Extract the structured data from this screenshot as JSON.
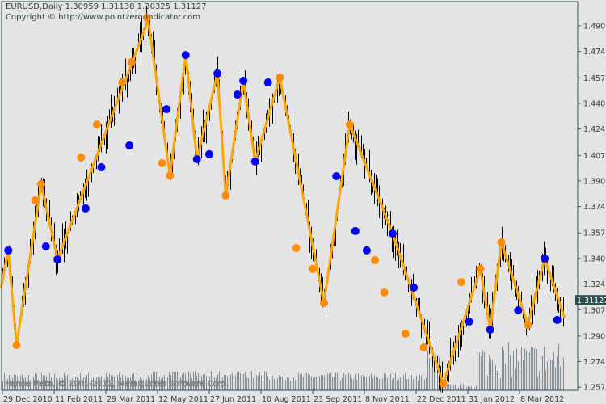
{
  "header": {
    "symbol_line": "EURUSD,Daily  1.30959 1.31138 1.30325 1.31127",
    "copyright": "Copyright © http://www.pointzero-indicator.com"
  },
  "watermark": "Hanse Meta, © 2001-2012, MetaQuotes Software Corp.",
  "current_price_label": "1.31127",
  "colors": {
    "background": "#e4e4e4",
    "axis": "#2f4f4f",
    "bars": "#000000",
    "zigzag": "#ffa500",
    "orange_marker": "#ff8c00",
    "blue_marker": "#0000ff",
    "volume": "#7f8a94",
    "price_label_bg": "#2f4f4f"
  },
  "chart_data": {
    "type": "line",
    "instrument": "EURUSD",
    "timeframe": "Daily",
    "last_bar": {
      "open": 1.30959,
      "high": 1.31138,
      "low": 1.30325,
      "close": 1.31127
    },
    "ylim": [
      1.2576,
      1.499
    ],
    "y_ticks": [
      "1.49060",
      "1.47410",
      "1.45710",
      "1.44060",
      "1.42410",
      "1.40710",
      "1.39060",
      "1.37410",
      "1.35710",
      "1.34060",
      "1.32410",
      "1.30760",
      "1.29060",
      "1.27410",
      "1.25760"
    ],
    "x_ticks": [
      "29 Dec 2010",
      "11 Feb 2011",
      "29 Mar 2011",
      "12 May 2011",
      "27 Jun 2011",
      "10 Aug 2011",
      "23 Sep 2011",
      "8 Nov 2011",
      "22 Dec 2011",
      "31 Jan 2012",
      "8 Mar 2012"
    ],
    "grid": false,
    "zigzag": [
      {
        "date": "2010-12-28",
        "price": 1.3223
      },
      {
        "date": "2011-01-03",
        "price": 1.3458
      },
      {
        "date": "2011-01-10",
        "price": 1.2848
      },
      {
        "date": "2011-01-31",
        "price": 1.3885
      },
      {
        "date": "2011-02-14",
        "price": 1.34
      },
      {
        "date": "2011-05-04",
        "price": 1.4942
      },
      {
        "date": "2011-05-23",
        "price": 1.3942
      },
      {
        "date": "2011-06-06",
        "price": 1.4718
      },
      {
        "date": "2011-06-16",
        "price": 1.4046
      },
      {
        "date": "2011-07-04",
        "price": 1.4599
      },
      {
        "date": "2011-07-11",
        "price": 1.3812
      },
      {
        "date": "2011-07-26",
        "price": 1.4552
      },
      {
        "date": "2011-08-05",
        "price": 1.4031
      },
      {
        "date": "2011-08-26",
        "price": 1.4573
      },
      {
        "date": "2011-10-03",
        "price": 1.3119
      },
      {
        "date": "2011-10-26",
        "price": 1.427
      },
      {
        "date": "2011-12-02",
        "price": 1.3567
      },
      {
        "date": "2012-01-12",
        "price": 1.2598
      },
      {
        "date": "2012-02-09",
        "price": 1.3338
      },
      {
        "date": "2012-02-16",
        "price": 1.2947
      },
      {
        "date": "2012-02-24",
        "price": 1.351
      },
      {
        "date": "2012-03-14",
        "price": 1.2978
      },
      {
        "date": "2012-03-26",
        "price": 1.3406
      },
      {
        "date": "2012-04-09",
        "price": 1.303
      }
    ],
    "blue_markers": [
      {
        "date": "2011-01-03",
        "price": 1.3458
      },
      {
        "date": "2011-02-04",
        "price": 1.3484
      },
      {
        "date": "2011-02-14",
        "price": 1.34
      },
      {
        "date": "2011-03-11",
        "price": 1.3729
      },
      {
        "date": "2011-03-25",
        "price": 1.3994
      },
      {
        "date": "2011-04-18",
        "price": 1.4135
      },
      {
        "date": "2011-05-20",
        "price": 1.4369
      },
      {
        "date": "2011-06-06",
        "price": 1.4718
      },
      {
        "date": "2011-06-16",
        "price": 1.4046
      },
      {
        "date": "2011-06-27",
        "price": 1.4078
      },
      {
        "date": "2011-07-04",
        "price": 1.4599
      },
      {
        "date": "2011-07-21",
        "price": 1.4463
      },
      {
        "date": "2011-07-26",
        "price": 1.4552
      },
      {
        "date": "2011-08-05",
        "price": 1.4031
      },
      {
        "date": "2011-08-16",
        "price": 1.4541
      },
      {
        "date": "2011-10-14",
        "price": 1.3937
      },
      {
        "date": "2011-10-31",
        "price": 1.3583
      },
      {
        "date": "2011-11-10",
        "price": 1.3458
      },
      {
        "date": "2011-12-02",
        "price": 1.3567
      },
      {
        "date": "2011-12-20",
        "price": 1.3218
      },
      {
        "date": "2012-02-01",
        "price": 1.2999
      },
      {
        "date": "2012-02-16",
        "price": 1.2947
      },
      {
        "date": "2012-03-07",
        "price": 1.3072
      },
      {
        "date": "2012-03-26",
        "price": 1.3406
      },
      {
        "date": "2012-04-04",
        "price": 1.301
      }
    ],
    "orange_markers": [
      {
        "date": "2011-01-10",
        "price": 1.2848
      },
      {
        "date": "2011-01-26",
        "price": 1.3781
      },
      {
        "date": "2011-01-31",
        "price": 1.3885
      },
      {
        "date": "2011-03-07",
        "price": 1.4057
      },
      {
        "date": "2011-03-21",
        "price": 1.427
      },
      {
        "date": "2011-04-12",
        "price": 1.4541
      },
      {
        "date": "2011-04-20",
        "price": 1.4672
      },
      {
        "date": "2011-05-03",
        "price": 1.4958
      },
      {
        "date": "2011-05-16",
        "price": 1.402
      },
      {
        "date": "2011-05-23",
        "price": 1.3942
      },
      {
        "date": "2011-07-11",
        "price": 1.3812
      },
      {
        "date": "2011-08-26",
        "price": 1.4573
      },
      {
        "date": "2011-09-09",
        "price": 1.3473
      },
      {
        "date": "2011-09-23",
        "price": 1.3338
      },
      {
        "date": "2011-10-03",
        "price": 1.3119
      },
      {
        "date": "2011-10-26",
        "price": 1.427
      },
      {
        "date": "2011-11-17",
        "price": 1.3395
      },
      {
        "date": "2011-11-25",
        "price": 1.3187
      },
      {
        "date": "2011-12-13",
        "price": 1.2921
      },
      {
        "date": "2011-12-28",
        "price": 1.2832
      },
      {
        "date": "2012-01-12",
        "price": 1.2598
      },
      {
        "date": "2012-01-26",
        "price": 1.3254
      },
      {
        "date": "2012-02-09",
        "price": 1.3338
      },
      {
        "date": "2012-02-24",
        "price": 1.351
      },
      {
        "date": "2012-03-14",
        "price": 1.2978
      }
    ]
  }
}
